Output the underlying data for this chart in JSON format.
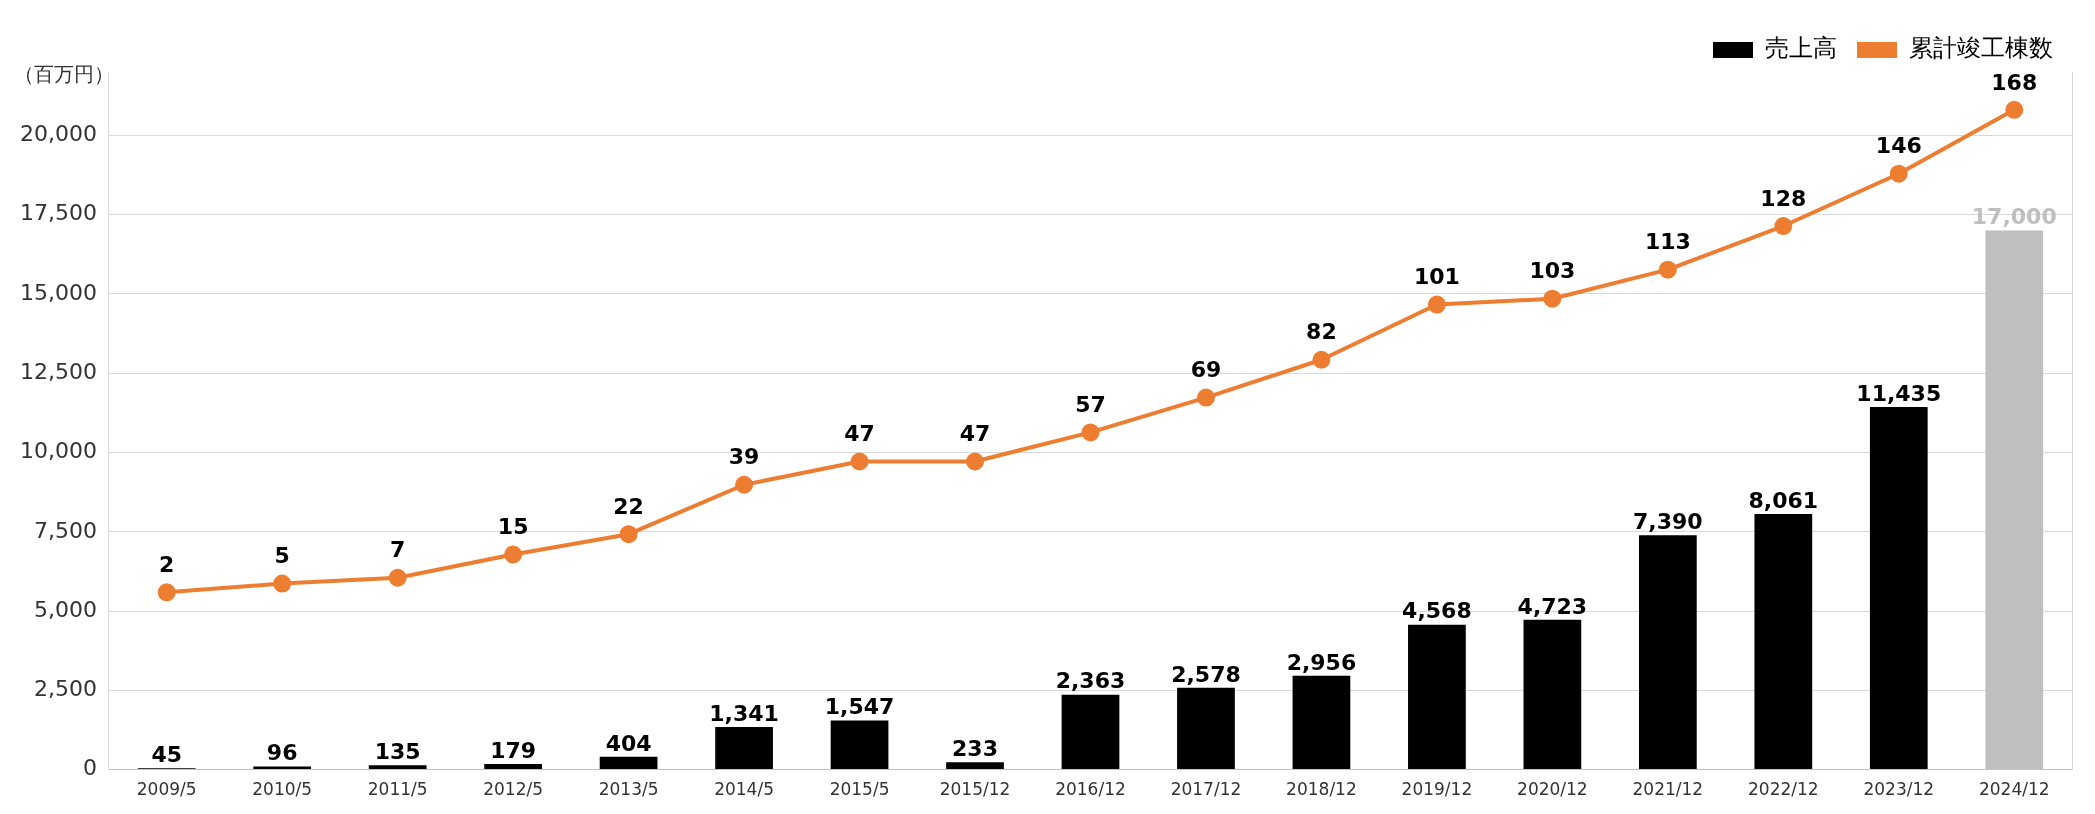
{
  "chart_data": {
    "type": "bar",
    "ylabel": "（百万円）",
    "categories": [
      "2009/5",
      "2010/5",
      "2011/5",
      "2012/5",
      "2013/5",
      "2014/5",
      "2015/5",
      "2015/12",
      "2016/12",
      "2017/12",
      "2018/12",
      "2019/12",
      "2020/12",
      "2021/12",
      "2022/12",
      "2023/12",
      "2024/12"
    ],
    "series": [
      {
        "name": "売上高",
        "color": "#000000",
        "colors": [
          "#000000",
          "#000000",
          "#000000",
          "#000000",
          "#000000",
          "#000000",
          "#000000",
          "#000000",
          "#000000",
          "#000000",
          "#000000",
          "#000000",
          "#000000",
          "#000000",
          "#000000",
          "#000000",
          "#bfbfbf"
        ],
        "values": [
          45,
          96,
          135,
          179,
          404,
          1341,
          1547,
          233,
          2363,
          2578,
          2956,
          4568,
          4723,
          7390,
          8061,
          11435,
          17000
        ],
        "value_labels": [
          "45",
          "96",
          "135",
          "179",
          "404",
          "1,341",
          "1,547",
          "233",
          "2,363",
          "2,578",
          "2,956",
          "4,568",
          "4,723",
          "7,390",
          "8,061",
          "11,435",
          "17,000"
        ]
      },
      {
        "name": "累計竣工棟数",
        "type": "line",
        "axis": "y2",
        "color": "#ed7d31",
        "marker": "circle",
        "line_style": "solid",
        "values": [
          2,
          5,
          7,
          15,
          22,
          39,
          47,
          47,
          57,
          69,
          82,
          101,
          103,
          113,
          128,
          146,
          168
        ],
        "value_labels": [
          "2",
          "5",
          "7",
          "15",
          "22",
          "39",
          "47",
          "47",
          "57",
          "69",
          "82",
          "101",
          "103",
          "113",
          "128",
          "146",
          "168"
        ]
      }
    ],
    "ylim": [
      0,
      22000
    ],
    "yticks": [
      {
        "value": 0,
        "label": "0"
      },
      {
        "value": 2500,
        "label": "2,500"
      },
      {
        "value": 5000,
        "label": "5,000"
      },
      {
        "value": 7500,
        "label": "7,500"
      },
      {
        "value": 10000,
        "label": "10,000"
      },
      {
        "value": 12500,
        "label": "12,500"
      },
      {
        "value": 15000,
        "label": "15,000"
      },
      {
        "value": 17500,
        "label": "17,500"
      },
      {
        "value": 20000,
        "label": "20,000"
      }
    ],
    "y2lim": [
      -59,
      181
    ],
    "grid": "y",
    "legend": "top right"
  }
}
